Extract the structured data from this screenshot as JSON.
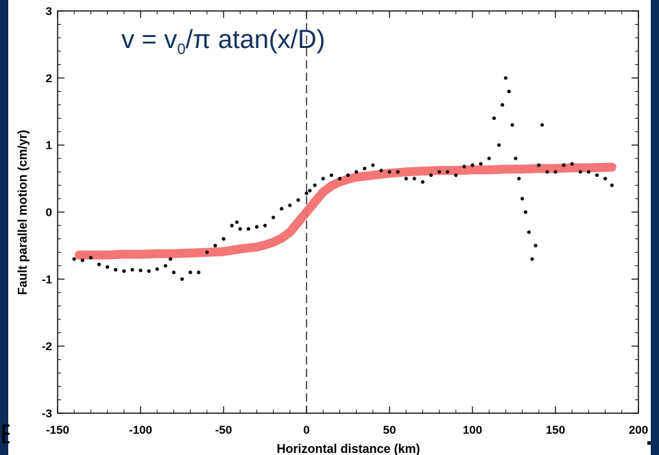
{
  "chart_data": {
    "type": "scatter",
    "title": "",
    "xlabel": "Horizontal distance (km)",
    "ylabel": "Fault parallel motion (cm/yr)",
    "xlim": [
      -150,
      200
    ],
    "ylim": [
      -3,
      3
    ],
    "x_ticks": [
      "-150",
      "-100",
      "-50",
      "0",
      "50",
      "100",
      "150",
      "200"
    ],
    "y_ticks": [
      "-3",
      "-2",
      "-1",
      "0",
      "1",
      "2",
      "3"
    ],
    "grid": false,
    "annotation": {
      "lhs": "v = v",
      "sub": "0",
      "rhs": "/π atan(x/D)"
    },
    "reference_line": {
      "x": 0,
      "style": "dashed",
      "color": "#000000"
    },
    "series": [
      {
        "type": "scatter",
        "color": "#000000",
        "x": [
          -140,
          -135,
          -130,
          -125,
          -120,
          -115,
          -110,
          -105,
          -100,
          -95,
          -90,
          -85,
          -82,
          -80,
          -75,
          -70,
          -65,
          -60,
          -55,
          -50,
          -45,
          -42,
          -40,
          -35,
          -30,
          -25,
          -20,
          -15,
          -10,
          -5,
          0,
          2,
          5,
          10,
          15,
          20,
          25,
          30,
          35,
          40,
          45,
          50,
          55,
          60,
          65,
          70,
          75,
          80,
          85,
          90,
          95,
          100,
          105,
          110,
          113,
          116,
          118,
          120,
          122,
          124,
          126,
          128,
          130,
          132,
          134,
          136,
          138,
          140,
          142,
          145,
          150,
          155,
          160,
          165,
          170,
          175,
          180,
          184
        ],
        "y": [
          -0.7,
          -0.72,
          -0.68,
          -0.78,
          -0.82,
          -0.86,
          -0.88,
          -0.86,
          -0.87,
          -0.88,
          -0.85,
          -0.8,
          -0.7,
          -0.9,
          -1.0,
          -0.9,
          -0.9,
          -0.6,
          -0.5,
          -0.4,
          -0.2,
          -0.15,
          -0.25,
          -0.25,
          -0.22,
          -0.2,
          -0.08,
          0.05,
          0.1,
          0.18,
          0.28,
          0.32,
          0.4,
          0.5,
          0.55,
          0.5,
          0.55,
          0.6,
          0.65,
          0.7,
          0.62,
          0.6,
          0.6,
          0.5,
          0.5,
          0.45,
          0.55,
          0.6,
          0.6,
          0.55,
          0.68,
          0.7,
          0.72,
          0.8,
          1.4,
          1.0,
          1.6,
          2.0,
          1.8,
          1.3,
          0.8,
          0.5,
          0.2,
          0.0,
          -0.3,
          -0.7,
          -0.5,
          0.7,
          1.3,
          0.6,
          0.6,
          0.7,
          0.72,
          0.6,
          0.6,
          0.55,
          0.5,
          0.4
        ]
      },
      {
        "type": "line",
        "color": "#f46a6a",
        "x": [
          -137,
          -130,
          -120,
          -110,
          -100,
          -90,
          -80,
          -70,
          -60,
          -50,
          -40,
          -30,
          -25,
          -20,
          -15,
          -10,
          -5,
          0,
          5,
          10,
          15,
          20,
          25,
          30,
          40,
          50,
          60,
          70,
          80,
          90,
          100,
          110,
          120,
          130,
          140,
          150,
          160,
          170,
          184
        ],
        "y": [
          -0.64,
          -0.64,
          -0.64,
          -0.63,
          -0.63,
          -0.62,
          -0.62,
          -0.61,
          -0.6,
          -0.59,
          -0.55,
          -0.52,
          -0.49,
          -0.45,
          -0.39,
          -0.3,
          -0.15,
          0.0,
          0.15,
          0.3,
          0.39,
          0.45,
          0.49,
          0.52,
          0.55,
          0.58,
          0.6,
          0.61,
          0.62,
          0.62,
          0.63,
          0.63,
          0.64,
          0.64,
          0.65,
          0.65,
          0.66,
          0.66,
          0.67
        ]
      }
    ]
  }
}
